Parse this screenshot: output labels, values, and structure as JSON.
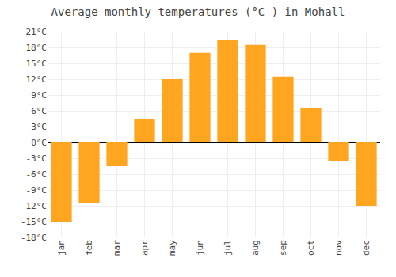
{
  "chart_data": {
    "type": "bar",
    "title": "Average monthly temperatures (°C ) in Mohall",
    "categories": [
      "jan",
      "feb",
      "mar",
      "apr",
      "may",
      "jun",
      "jul",
      "aug",
      "sep",
      "oct",
      "nov",
      "dec"
    ],
    "values": [
      -15,
      -11.5,
      -4.5,
      4.5,
      12,
      17,
      19.5,
      18.5,
      12.5,
      6.5,
      -3.5,
      -12
    ],
    "color": "#FFA520",
    "ylim": [
      -18,
      21
    ],
    "yticks": [
      {
        "value": -18,
        "label": "-18°C"
      },
      {
        "value": -15,
        "label": "-15°C"
      },
      {
        "value": -12,
        "label": "-12°C"
      },
      {
        "value": -9,
        "label": "-9°C"
      },
      {
        "value": -6,
        "label": "-6°C"
      },
      {
        "value": -3,
        "label": "-3°C"
      },
      {
        "value": 0,
        "label": "0°C"
      },
      {
        "value": 3,
        "label": "3°C"
      },
      {
        "value": 6,
        "label": "6°C"
      },
      {
        "value": 9,
        "label": "9°C"
      },
      {
        "value": 12,
        "label": "12°C"
      },
      {
        "value": 15,
        "label": "15°C"
      },
      {
        "value": 18,
        "label": "18°C"
      },
      {
        "value": 21,
        "label": "21°C"
      }
    ],
    "grid": true
  }
}
